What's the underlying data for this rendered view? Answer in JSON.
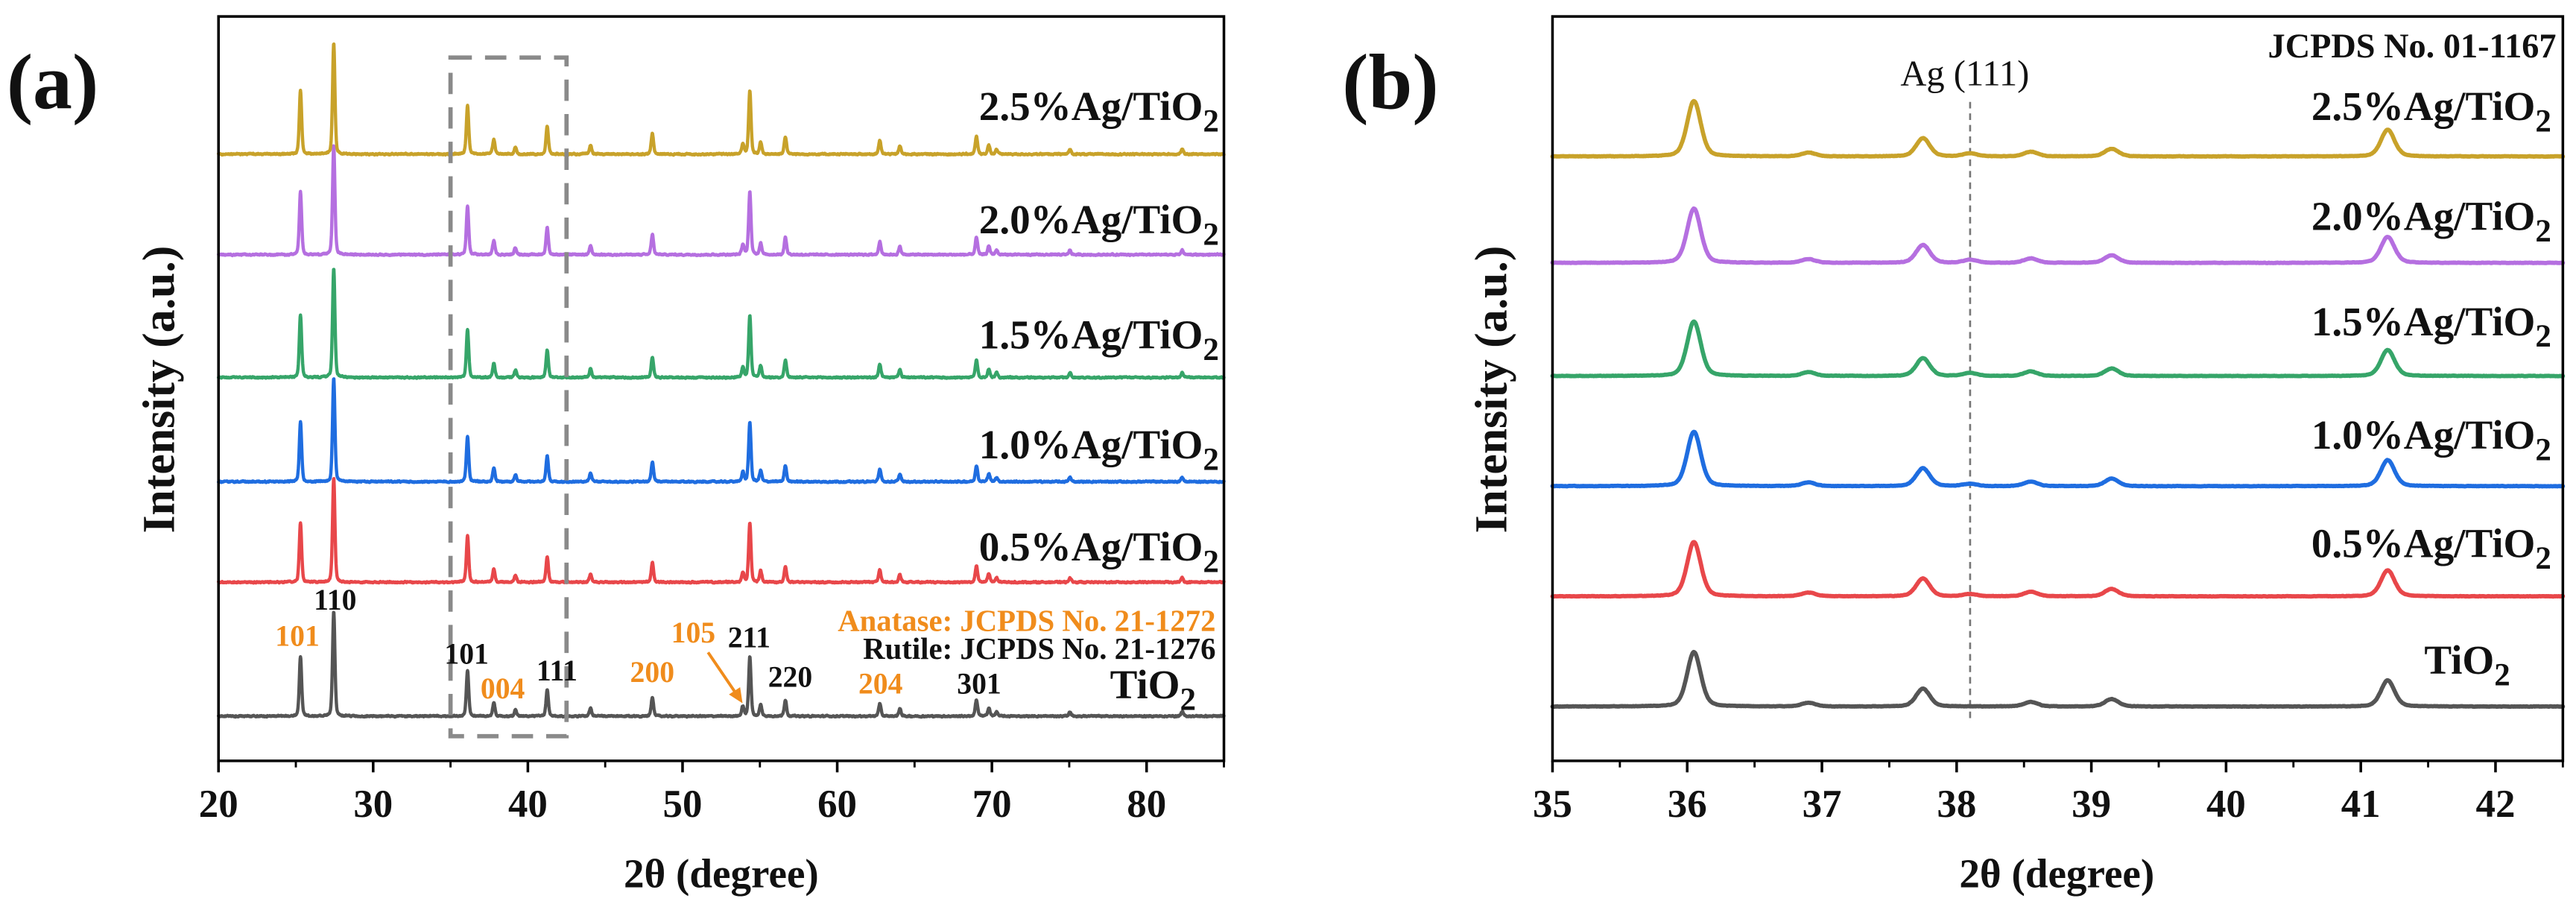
{
  "chart_data": [
    {
      "panel": "(a)",
      "type": "line",
      "xlabel": "2θ (degree)",
      "ylabel": "Intensity (a.u.)",
      "xlim": [
        20,
        85
      ],
      "ylim": [
        0,
        1000
      ],
      "xticks": [
        20,
        30,
        40,
        50,
        60,
        70,
        80
      ],
      "minor_xtick_step": 5,
      "peak_hwhm_deg": 0.09,
      "peaks": [
        [
          25.3,
          80
        ],
        [
          27.45,
          140
        ],
        [
          36.1,
          62
        ],
        [
          37.8,
          18
        ],
        [
          39.2,
          9
        ],
        [
          41.25,
          35
        ],
        [
          44.05,
          11
        ],
        [
          48.05,
          26
        ],
        [
          53.9,
          13
        ],
        [
          54.35,
          80
        ],
        [
          55.05,
          15
        ],
        [
          56.65,
          22
        ],
        [
          62.75,
          17
        ],
        [
          64.05,
          10
        ],
        [
          69.0,
          22
        ],
        [
          69.8,
          11
        ],
        [
          70.3,
          6
        ],
        [
          75.05,
          6
        ],
        [
          82.3,
          6
        ]
      ],
      "series": [
        {
          "label": "TiO2",
          "color": "#555555",
          "offset": 60,
          "scale": 1.0
        },
        {
          "label": "0.5%Ag/TiO2",
          "color": "#e8474a",
          "offset": 240,
          "scale": 1.0
        },
        {
          "label": "1.0%Ag/TiO2",
          "color": "#1f6de0",
          "offset": 375,
          "scale": 1.0
        },
        {
          "label": "1.5%Ag/TiO2",
          "color": "#36a569",
          "offset": 515,
          "scale": 1.05
        },
        {
          "label": "2.0%Ag/TiO2",
          "color": "#b56fe0",
          "offset": 680,
          "scale": 1.05
        },
        {
          "label": "2.5%Ag/TiO2",
          "color": "#c8a22a",
          "offset": 815,
          "scale": 1.07
        }
      ],
      "annotations": {
        "anatase": [
          "101",
          "004",
          "200",
          "105",
          "204"
        ],
        "rutile": [
          "110",
          "101",
          "111",
          "211",
          "220",
          "301"
        ]
      },
      "phase_legend": {
        "anatase": "Anatase: JCPDS No. 21-1272",
        "rutile": "Rutile: JCPDS No. 21-1276"
      },
      "phase_colors": {
        "anatase": "#f08c1c",
        "rutile": "#111111"
      },
      "zoom_box_xrange": [
        35,
        42.5
      ]
    },
    {
      "panel": "(b)",
      "type": "line",
      "xlabel": "2θ (degree)",
      "ylabel": "Intensity (a.u.)",
      "xlim": [
        35,
        42.5
      ],
      "ylim": [
        0,
        1000
      ],
      "xticks": [
        35,
        36,
        37,
        38,
        39,
        40,
        41,
        42
      ],
      "minor_xtick_step": 0.5,
      "peak_hwhm_deg": 0.06,
      "peaks": [
        [
          36.05,
          73
        ],
        [
          36.9,
          5
        ],
        [
          37.75,
          24
        ],
        [
          38.55,
          6
        ],
        [
          39.15,
          10
        ],
        [
          41.2,
          35
        ]
      ],
      "reference_line": {
        "x": 38.1,
        "label": "Ag (111)"
      },
      "card": "JCPDS No. 01-1167",
      "series": [
        {
          "label": "TiO2",
          "color": "#555555",
          "offset": 73,
          "scale": 1.0,
          "ag_111": 0
        },
        {
          "label": "0.5%Ag/TiO2",
          "color": "#e8474a",
          "offset": 221,
          "scale": 1.0,
          "ag_111": 3
        },
        {
          "label": "1.0%Ag/TiO2",
          "color": "#1f6de0",
          "offset": 369,
          "scale": 1.0,
          "ag_111": 3
        },
        {
          "label": "1.5%Ag/TiO2",
          "color": "#36a569",
          "offset": 517,
          "scale": 1.0,
          "ag_111": 4
        },
        {
          "label": "2.0%Ag/TiO2",
          "color": "#b56fe0",
          "offset": 669,
          "scale": 1.0,
          "ag_111": 4
        },
        {
          "label": "2.5%Ag/TiO2",
          "color": "#c8a22a",
          "offset": 812,
          "scale": 1.02,
          "ag_111": 4
        }
      ]
    }
  ]
}
